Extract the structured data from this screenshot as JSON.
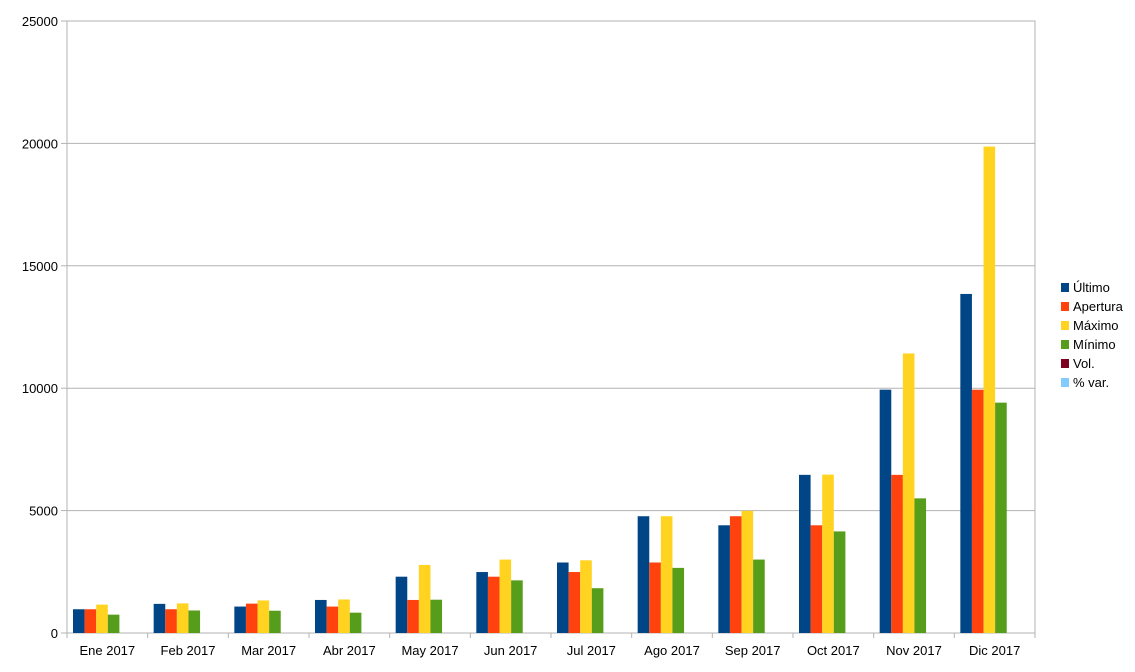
{
  "chart_data": {
    "type": "bar",
    "categories": [
      "Ene 2017",
      "Feb 2017",
      "Mar 2017",
      "Abr 2017",
      "May 2017",
      "Jun 2017",
      "Jul 2017",
      "Ago 2017",
      "Sep 2017",
      "Oct 2017",
      "Nov 2017",
      "Dic 2017"
    ],
    "series": [
      {
        "name": "Último",
        "color": "#004586",
        "values": [
          970,
          1190,
          1080,
          1350,
          2300,
          2490,
          2880,
          4770,
          4400,
          6460,
          9940,
          13850
        ]
      },
      {
        "name": "Apertura",
        "color": "#ff420e",
        "values": [
          970,
          970,
          1200,
          1080,
          1350,
          2300,
          2490,
          2880,
          4770,
          4400,
          6460,
          9940
        ]
      },
      {
        "name": "Máximo",
        "color": "#ffd320",
        "values": [
          1160,
          1210,
          1330,
          1370,
          2780,
          3000,
          2970,
          4770,
          4990,
          6470,
          11420,
          19870
        ]
      },
      {
        "name": "Mínimo",
        "color": "#579d1c",
        "values": [
          750,
          920,
          910,
          830,
          1360,
          2150,
          1830,
          2660,
          3000,
          4150,
          5500,
          9410
        ]
      },
      {
        "name": "Vol.",
        "color": "#7e0021",
        "values": [
          0,
          0,
          0,
          0,
          0,
          0,
          0,
          0,
          0,
          0,
          0,
          0
        ]
      },
      {
        "name": "% var.",
        "color": "#83caff",
        "values": [
          0,
          0,
          0,
          0,
          0,
          0,
          0,
          0,
          0,
          0,
          0,
          0
        ]
      }
    ],
    "yticks": [
      "0",
      "5000",
      "10000",
      "15000",
      "20000",
      "25000"
    ],
    "ylim": [
      0,
      25000
    ],
    "grid": true,
    "legend_position": "right"
  }
}
